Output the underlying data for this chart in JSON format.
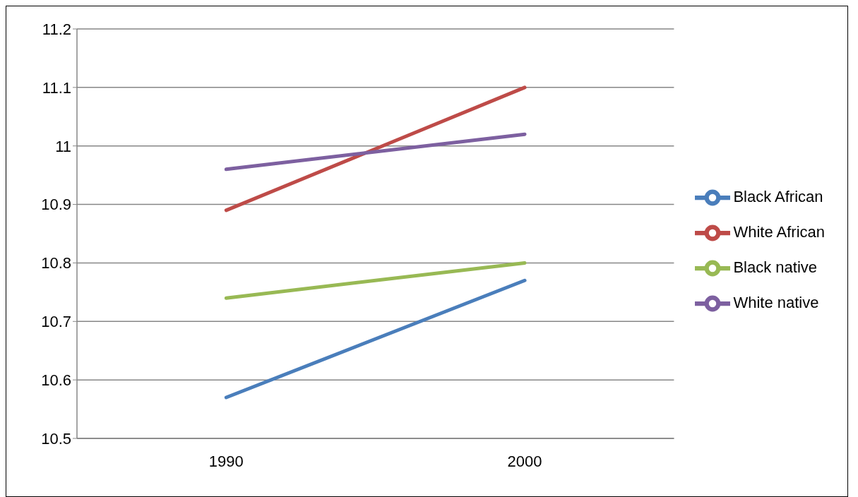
{
  "chart_data": {
    "type": "line",
    "categories": [
      "1990",
      "2000"
    ],
    "series": [
      {
        "name": "Black African",
        "color": "#4a7ebb",
        "values": [
          10.57,
          10.77
        ]
      },
      {
        "name": "White African",
        "color": "#be4b48",
        "values": [
          10.89,
          11.1
        ]
      },
      {
        "name": "Black native",
        "color": "#98b954",
        "values": [
          10.74,
          10.8
        ]
      },
      {
        "name": "White native",
        "color": "#7d60a0",
        "values": [
          10.96,
          11.02
        ]
      }
    ],
    "ylim": [
      10.5,
      11.2
    ],
    "yticks": [
      10.5,
      10.6,
      10.7,
      10.8,
      10.9,
      11,
      11.1,
      11.2
    ],
    "grid": "y",
    "legend": "right",
    "marker": "none",
    "line_style": "solid"
  }
}
